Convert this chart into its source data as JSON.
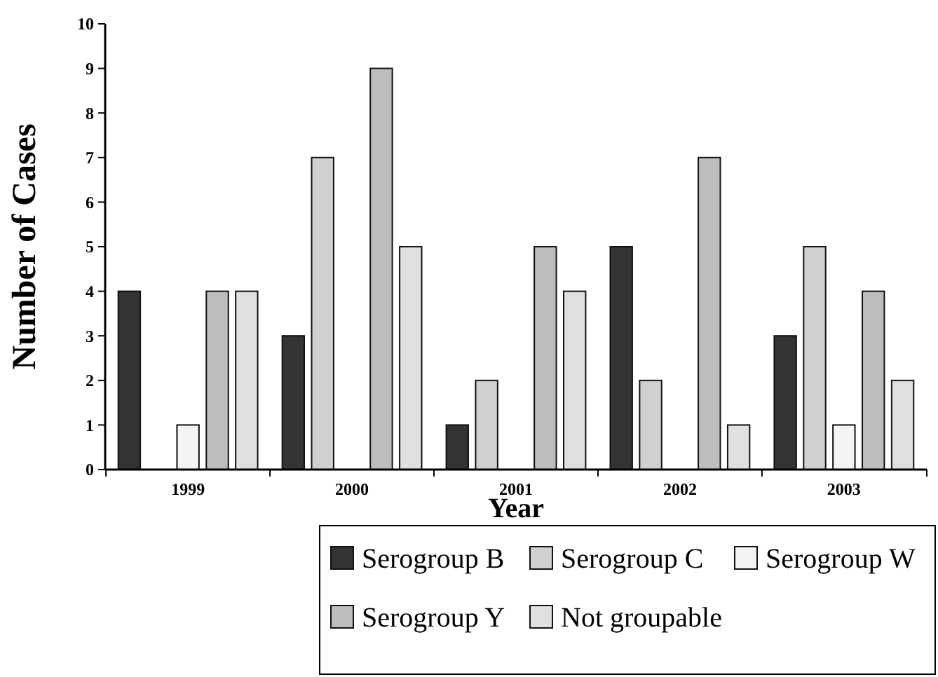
{
  "chart_data": {
    "type": "bar",
    "xlabel": "Year",
    "ylabel": "Number of Cases",
    "categories": [
      "1999",
      "2000",
      "2001",
      "2002",
      "2003"
    ],
    "ylim": [
      0,
      10
    ],
    "yticks": [
      0,
      1,
      2,
      3,
      4,
      5,
      6,
      7,
      8,
      9,
      10
    ],
    "legend": "bottom",
    "grid": false,
    "series": [
      {
        "name": "Serogroup B",
        "color": "#333333",
        "values": [
          4,
          3,
          1,
          5,
          3
        ]
      },
      {
        "name": "Serogroup C",
        "color": "#d0d0d0",
        "values": [
          0,
          7,
          2,
          2,
          5
        ]
      },
      {
        "name": "Serogroup W",
        "color": "#f4f4f4",
        "values": [
          1,
          0,
          0,
          0,
          1
        ]
      },
      {
        "name": "Serogroup Y",
        "color": "#bdbdbd",
        "values": [
          4,
          9,
          5,
          7,
          4
        ]
      },
      {
        "name": "Not groupable",
        "color": "#e0e0e0",
        "values": [
          4,
          5,
          4,
          1,
          2
        ]
      }
    ]
  }
}
